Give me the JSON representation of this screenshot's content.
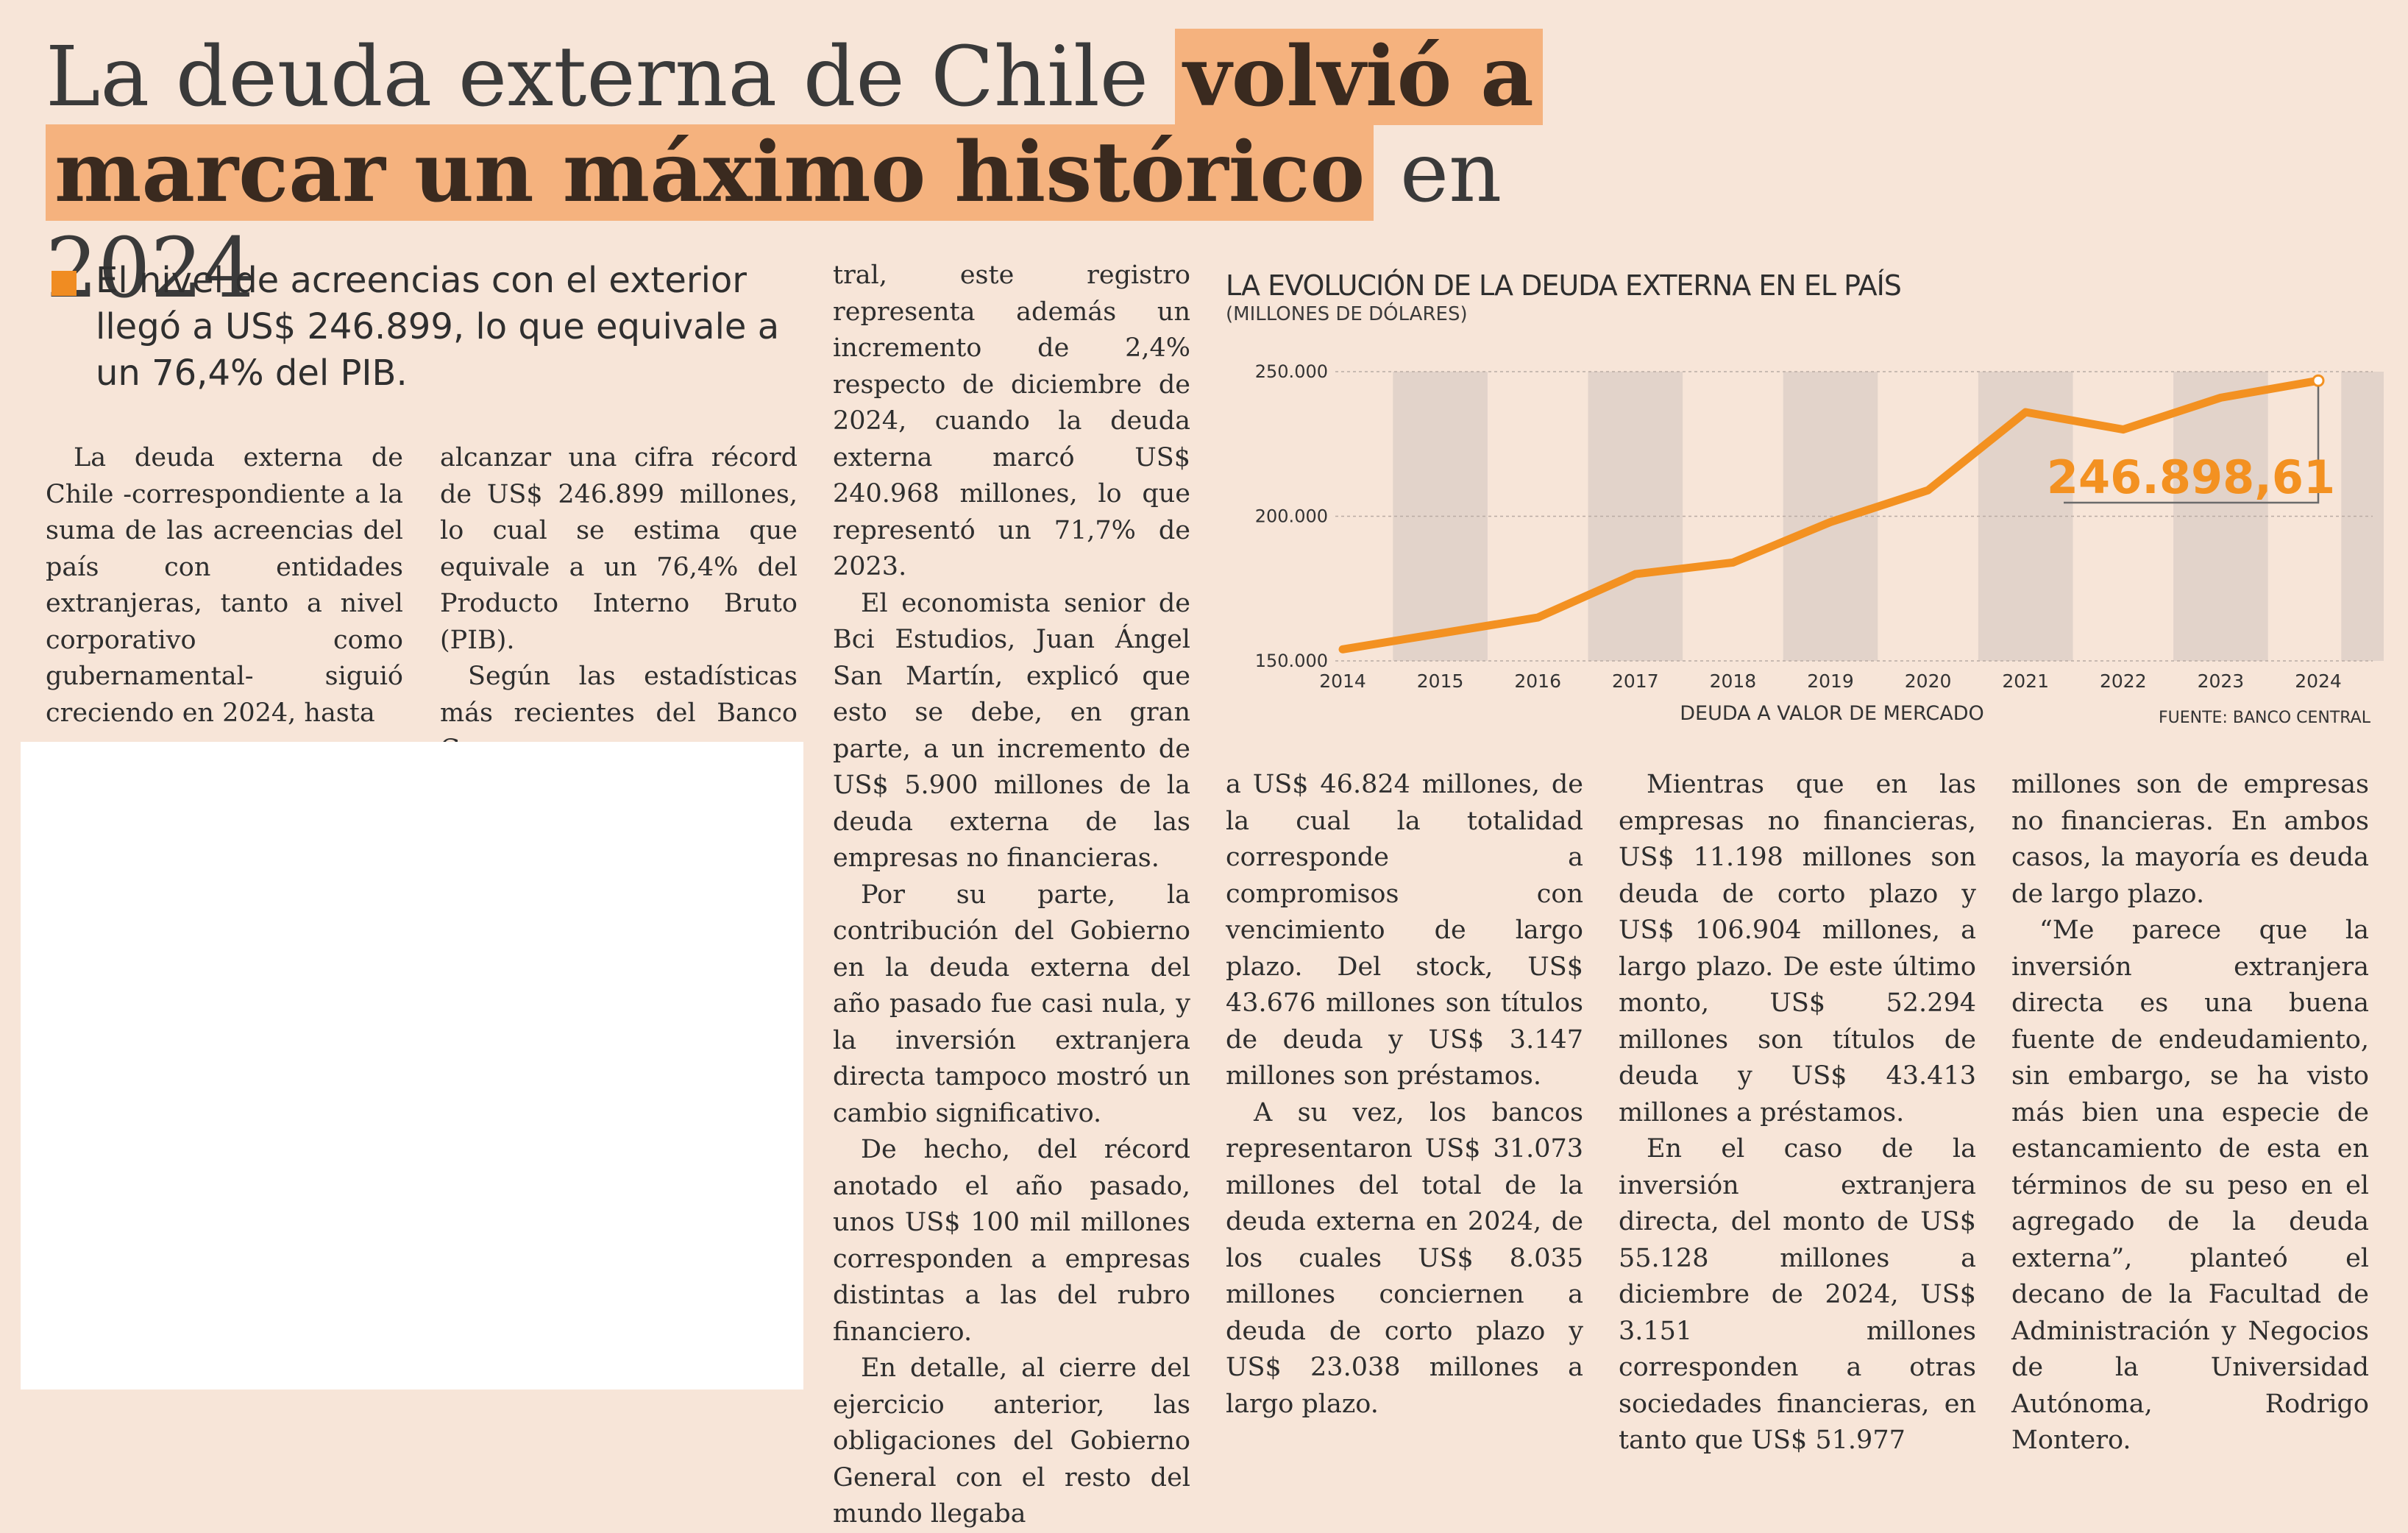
{
  "article": {
    "headline": {
      "part1": "La deuda externa de Chile ",
      "highlight1": "volvió a",
      "highlight2": "marcar un máximo histórico",
      "part2": " en 2024"
    },
    "lead": "El nivel de acreencias con el exterior llegó a US$ 246.899, lo que equivale a un 76,4% del PIB.",
    "col1": [
      "La deuda externa de Chile -correspondiente a la suma de las acreencias del país con entidades extranjeras, tanto a nivel corporativo como gubernamental- siguió creciendo en 2024, hasta"
    ],
    "col2": [
      "alcanzar una cifra récord de US$ 246.899 millones, lo cual se estima que equivale a un 76,4% del Producto Interno Bruto (PIB).",
      "Según las estadísticas más recientes del Banco Cen-"
    ],
    "col3": [
      "tral, este registro representa además un incremento de 2,4% respecto de diciembre de 2024, cuando la deuda externa marcó US$ 240.968 millones, lo que representó un 71,7% de 2023.",
      "El economista senior de Bci Estudios, Juan Ángel San Martín, explicó que esto se debe, en gran parte, a un incremento de US$ 5.900 millones de la deuda externa de las empresas no financieras.",
      "Por su parte, la contribución del Gobierno en la deuda externa del año pasado fue casi nula, y la inversión extranjera directa tampoco mostró un cambio significativo.",
      "De hecho, del récord anotado el año pasado, unos US$ 100 mil millones corresponden a empresas distintas a las del rubro financiero.",
      "En detalle, al cierre del ejercicio anterior, las obligaciones del Gobierno General con el resto del mundo llegaba"
    ],
    "col4": [
      "a US$ 46.824 millones, de la cual la totalidad corresponde a compromisos con vencimiento de largo plazo. Del stock, US$ 43.676 millones son títulos de deuda y US$ 3.147 millones son préstamos.",
      "A su vez, los bancos representaron US$ 31.073 millones del total de la deuda externa en 2024, de los cuales US$ 8.035 millones conciernen a deuda de corto plazo y US$ 23.038 millones a largo plazo."
    ],
    "col5": [
      "Mientras que en las empresas no financieras, US$ 11.198 millones son deuda de corto plazo y US$ 106.904 millones, a largo plazo. De este último monto, US$ 52.294 millones son títulos de deuda y US$ 43.413 millones a préstamos.",
      "En el caso de la inversión extranjera directa, del monto de US$ 55.128 millones a diciembre de 2024, US$ 3.151 millones corresponden a otras sociedades financieras, en tanto que US$ 51.977"
    ],
    "col6": [
      "millones son de empresas no financieras. En ambos casos, la mayoría es deuda de largo plazo.",
      "“Me parece que la inversión extranjera directa es una buena fuente de endeudamiento, sin embargo, se ha visto más bien una especie de estancamiento de esta en términos de su peso en el agregado de la deuda externa”, planteó el decano de la Facultad de Administración y Negocios de la Universidad Autónoma, Rodrigo Montero."
    ]
  },
  "chart_data": {
    "type": "line",
    "title": "LA EVOLUCIÓN DE LA DEUDA EXTERNA EN EL PAÍS",
    "subtitle": "(MILLONES DE DÓLARES)",
    "xlabel": "DEUDA A VALOR DE MERCADO",
    "source": "FUENTE: BANCO CENTRAL",
    "x": [
      "2014",
      "2015",
      "2016",
      "2017",
      "2018",
      "2019",
      "2020",
      "2021",
      "2022",
      "2023",
      "2024"
    ],
    "y_ticks": [
      "250.000",
      "200.000",
      "150.000"
    ],
    "y_tick_values": [
      250000,
      200000,
      150000
    ],
    "ylim": [
      150000,
      250000
    ],
    "series": [
      {
        "values": [
          154000,
          159500,
          165000,
          180000,
          184000,
          198000,
          209000,
          236000,
          230000,
          241000,
          246898.61
        ]
      }
    ],
    "annotation": {
      "label": "246.898,61",
      "x": "2024"
    },
    "line_color": "#f39121",
    "band_color": "#e2d3ca",
    "grid": "dashed horizontal"
  }
}
